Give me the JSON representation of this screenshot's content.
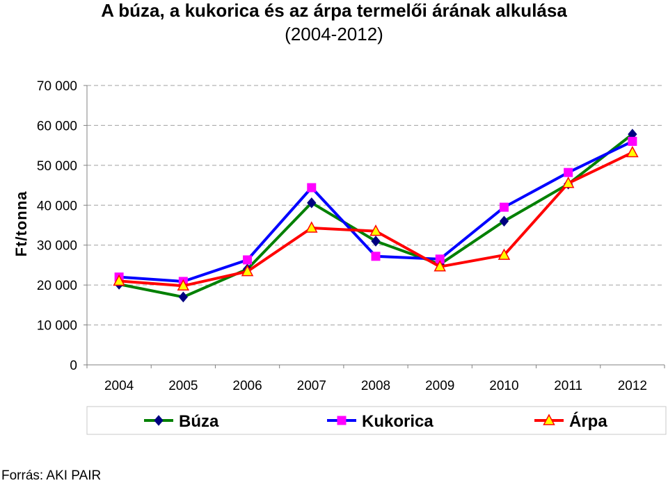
{
  "chart_data": {
    "type": "line",
    "title": "A búza, a kukorica és az árpa termelői árának alkulása",
    "subtitle": "(2004-2012)",
    "ylabel": "Ft/tonna",
    "xlabel": "",
    "categories": [
      "2004",
      "2005",
      "2006",
      "2007",
      "2008",
      "2009",
      "2010",
      "2011",
      "2012"
    ],
    "ylim": [
      0,
      70000
    ],
    "yticks": [
      0,
      10000,
      20000,
      30000,
      40000,
      50000,
      60000,
      70000
    ],
    "ytick_labels": [
      "0",
      "10 000",
      "20 000",
      "30 000",
      "40 000",
      "50 000",
      "60 000",
      "70 000"
    ],
    "grid": true,
    "legend_position": "bottom",
    "series": [
      {
        "name": "Búza",
        "color": "#008000",
        "marker_color": "#000080",
        "marker": "diamond",
        "values": [
          20200,
          17000,
          24000,
          40600,
          31000,
          25200,
          36000,
          45300,
          57800
        ]
      },
      {
        "name": "Kukorica",
        "color": "#0000FF",
        "marker_color": "#FF00FF",
        "marker": "square",
        "values": [
          22000,
          20900,
          26300,
          44400,
          27200,
          26500,
          39500,
          48200,
          56000
        ]
      },
      {
        "name": "Árpa",
        "color": "#FF0000",
        "marker_color": "#FFFF00",
        "marker": "triangle",
        "values": [
          21000,
          19800,
          23400,
          34300,
          33500,
          24600,
          27500,
          45500,
          53200
        ]
      }
    ]
  },
  "source": "Forrás: AKI PAIR"
}
